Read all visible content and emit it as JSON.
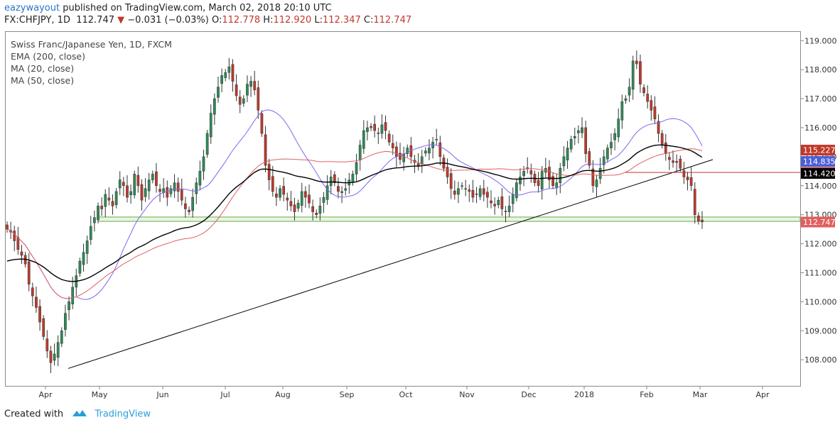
{
  "header": {
    "user": "eazywayout",
    "published": "published on TradingView.com, March 02, 2018 20:10 UTC",
    "symbol": "FX:CHFJPY, 1D",
    "last": "112.747",
    "change": "−0.031 (−0.03%)",
    "o_label": "O:",
    "o_val": "112.778",
    "h_label": "H:",
    "h_val": "112.920",
    "l_label": "L:",
    "l_val": "112.347",
    "c_label": "C:",
    "c_val": "112.747"
  },
  "legend": {
    "title": "Swiss Franc/Japanese Yen, 1D, FXCM",
    "ema": "EMA (200, close)",
    "ma20": "MA (20, close)",
    "ma50": "MA (50, close)"
  },
  "footer": {
    "created": "Created with",
    "brand": "TradingView"
  },
  "colors": {
    "up": "#2e8b57",
    "down": "#c0392b",
    "ema200": "#000000",
    "ma20": "#7b68ee",
    "ma50": "#e06060",
    "support": "#6aa84f",
    "trend": "#000000"
  },
  "chart_data": {
    "type": "candlestick",
    "title": "Swiss Franc/Japanese Yen, 1D, FXCM",
    "ylim": [
      107.1,
      119.3
    ],
    "y_ticks": [
      "108.000",
      "109.000",
      "110.000",
      "111.000",
      "112.000",
      "113.000",
      "114.000",
      "115.000",
      "116.000",
      "117.000",
      "118.000",
      "119.000"
    ],
    "x_ticks": [
      "Apr",
      "May",
      "Jun",
      "Jul",
      "Aug",
      "Sep",
      "Oct",
      "Nov",
      "Dec",
      "2018",
      "Feb",
      "Mar",
      "Apr"
    ],
    "price_tags": [
      {
        "label": "115.227",
        "value": 115.227,
        "color": "#c0392b"
      },
      {
        "label": "114.835",
        "value": 114.835,
        "color": "#4b5fd6"
      },
      {
        "label": "114.455",
        "value": 114.455,
        "color": "#c0392b"
      },
      {
        "label": "114.420",
        "value": 114.42,
        "color": "#000000"
      },
      {
        "label": "112.747",
        "value": 112.747,
        "color": "#e06060"
      }
    ],
    "support_zone": [
      112.77,
      112.92
    ],
    "series": [
      {
        "name": "CHFJPY",
        "type": "candlestick",
        "close": [
          112.5,
          112.4,
          112.1,
          111.8,
          111.6,
          111.3,
          110.6,
          110.2,
          109.8,
          109.3,
          108.8,
          108.3,
          107.9,
          108.2,
          108.6,
          109.0,
          109.6,
          110.0,
          110.5,
          110.9,
          111.4,
          111.7,
          112.1,
          112.6,
          112.9,
          113.3,
          113.2,
          113.7,
          113.5,
          113.3,
          113.8,
          114.2,
          114.0,
          113.6,
          113.8,
          114.4,
          114.0,
          113.5,
          113.9,
          114.2,
          114.4,
          114.0,
          113.8,
          113.9,
          113.6,
          113.9,
          114.1,
          113.8,
          113.5,
          113.2,
          113.1,
          113.6,
          114.1,
          114.5,
          115.0,
          115.8,
          116.5,
          117.0,
          117.4,
          117.8,
          117.9,
          118.1,
          117.6,
          117.1,
          116.8,
          117.0,
          117.5,
          117.6,
          117.3,
          116.6,
          115.8,
          114.7,
          114.2,
          113.8,
          113.6,
          113.9,
          113.7,
          113.5,
          113.3,
          113.1,
          113.4,
          113.8,
          113.6,
          113.4,
          113.1,
          113.0,
          113.3,
          113.6,
          114.0,
          114.3,
          114.1,
          113.8,
          113.8,
          113.9,
          114.2,
          114.4,
          114.8,
          115.4,
          115.9,
          116.0,
          116.0,
          115.9,
          115.8,
          116.1,
          115.9,
          115.5,
          115.3,
          115.0,
          114.9,
          115.1,
          115.3,
          115.0,
          114.8,
          114.7,
          115.0,
          115.2,
          115.3,
          115.5,
          115.6,
          115.0,
          114.6,
          114.3,
          113.9,
          113.7,
          113.9,
          114.0,
          113.9,
          113.8,
          113.6,
          113.7,
          113.9,
          113.7,
          113.6,
          113.4,
          113.3,
          113.5,
          113.2,
          113.1,
          113.3,
          113.7,
          114.1,
          114.3,
          114.5,
          114.6,
          114.4,
          114.1,
          114.0,
          114.5,
          114.6,
          114.2,
          114.0,
          114.1,
          114.6,
          115.0,
          115.3,
          115.6,
          115.7,
          115.9,
          116.0,
          115.1,
          114.7,
          114.0,
          114.2,
          114.6,
          115.0,
          115.3,
          115.5,
          115.8,
          116.3,
          116.9,
          117.0,
          117.4,
          118.3,
          118.2,
          117.5,
          117.2,
          116.9,
          116.6,
          116.3,
          115.8,
          115.4,
          115.1,
          114.9,
          114.8,
          114.8,
          114.6,
          114.3,
          114.2,
          114.0,
          113.0,
          112.78,
          112.75
        ]
      },
      {
        "name": "EMA (200, close)",
        "type": "line"
      },
      {
        "name": "MA (20, close)",
        "type": "line"
      },
      {
        "name": "MA (50, close)",
        "type": "line"
      }
    ],
    "trendline": {
      "from": [
        107.7,
        "Apr"
      ],
      "to": [
        114.9,
        "Mar"
      ]
    },
    "horizontal_line": 114.455
  }
}
